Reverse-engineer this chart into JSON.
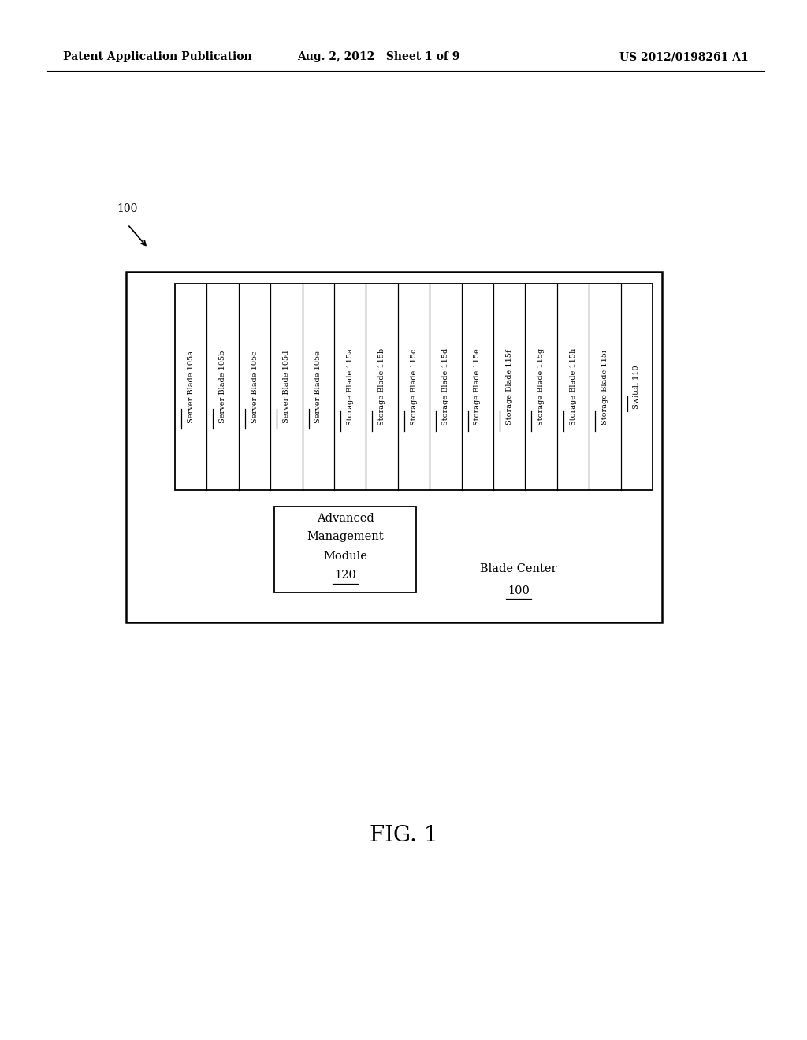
{
  "bg_color": "#ffffff",
  "header_left": "Patent Application Publication",
  "header_mid": "Aug. 2, 2012   Sheet 1 of 9",
  "header_right": "US 2012/0198261 A1",
  "fig_label": "FIG. 1",
  "blade_slots": [
    {
      "label": "Server Blade 105a",
      "underline_text": "105a"
    },
    {
      "label": "Server Blade 105b",
      "underline_text": "105b"
    },
    {
      "label": "Server Blade 105c",
      "underline_text": "105c"
    },
    {
      "label": "Server Blade 105d",
      "underline_text": "105d"
    },
    {
      "label": "Server Blade 105e",
      "underline_text": "105e"
    },
    {
      "label": "Storage Blade 115a",
      "underline_text": "115a"
    },
    {
      "label": "Storage Blade 115b",
      "underline_text": "115b"
    },
    {
      "label": "Storage Blade 115c",
      "underline_text": "115c"
    },
    {
      "label": "Storage Blade 115d",
      "underline_text": "115d"
    },
    {
      "label": "Storage Blade 115e",
      "underline_text": "115e"
    },
    {
      "label": "Storage Blade 115f",
      "underline_text": "115f"
    },
    {
      "label": "Storage Blade 115g",
      "underline_text": "115g"
    },
    {
      "label": "Storage Blade 115h",
      "underline_text": "115h"
    },
    {
      "label": "Storage Blade 115i",
      "underline_text": "115i"
    },
    {
      "label": "Switch 110",
      "underline_text": "110"
    }
  ],
  "amm_lines": [
    "Advanced",
    "Management",
    "Module"
  ],
  "amm_ref": "120",
  "blade_center_label": "Blade Center",
  "blade_center_ref": "100"
}
